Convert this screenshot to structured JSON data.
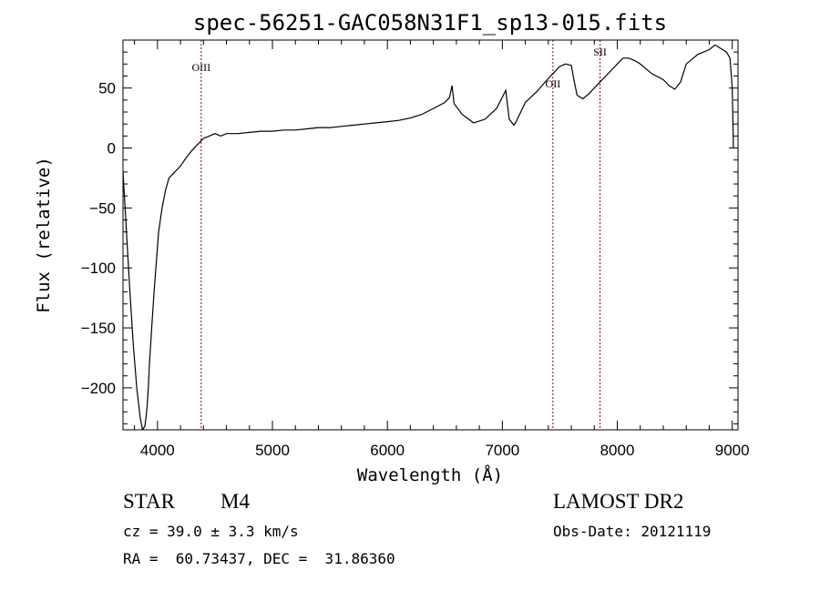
{
  "chart_data": {
    "type": "line",
    "title": "spec-56251-GAC058N31F1_sp13-015.fits",
    "xlabel": "Wavelength (Å)",
    "ylabel": "Flux (relative)",
    "xlim": [
      3700,
      9050
    ],
    "ylim": [
      -235,
      90
    ],
    "xticks": [
      4000,
      5000,
      6000,
      7000,
      8000,
      9000
    ],
    "yticks": [
      -200,
      -150,
      -100,
      -50,
      0,
      50
    ],
    "grid": false,
    "series": [
      {
        "x": [
          3700,
          3730,
          3760,
          3790,
          3820,
          3850,
          3870,
          3890,
          3900,
          3910,
          3920,
          3930,
          3950,
          3970,
          3990,
          4010,
          4040,
          4070,
          4100,
          4150,
          4200,
          4250,
          4300,
          4350,
          4400,
          4450,
          4500,
          4550,
          4600,
          4700,
          4800,
          4900,
          5000,
          5100,
          5200,
          5300,
          5400,
          5500,
          5600,
          5700,
          5800,
          5900,
          6000,
          6100,
          6200,
          6300,
          6400,
          6500,
          6540,
          6562,
          6580,
          6650,
          6750,
          6850,
          6950,
          7030,
          7060,
          7100,
          7120,
          7150,
          7200,
          7300,
          7400,
          7450,
          7500,
          7550,
          7600,
          7620,
          7650,
          7700,
          7750,
          7800,
          7850,
          7900,
          8000,
          8050,
          8100,
          8150,
          8200,
          8300,
          8400,
          8450,
          8500,
          8550,
          8600,
          8700,
          8800,
          8850,
          8900,
          8950,
          8980,
          9000,
          9010
        ],
        "y": [
          -20,
          -70,
          -120,
          -165,
          -200,
          -225,
          -235,
          -232,
          -225,
          -215,
          -200,
          -180,
          -150,
          -120,
          -95,
          -70,
          -50,
          -35,
          -25,
          -20,
          -15,
          -8,
          -2,
          3,
          8,
          10,
          12,
          10,
          12,
          12,
          13,
          14,
          14,
          15,
          15,
          16,
          17,
          17,
          18,
          19,
          20,
          21,
          22,
          23,
          25,
          28,
          33,
          38,
          42,
          52,
          37,
          28,
          21,
          24,
          33,
          48,
          24,
          19,
          22,
          28,
          38,
          47,
          58,
          63,
          68,
          70,
          69,
          58,
          44,
          41,
          45,
          50,
          55,
          60,
          70,
          75,
          75,
          73,
          70,
          62,
          57,
          52,
          49,
          55,
          70,
          78,
          82,
          86,
          83,
          80,
          75,
          50,
          0
        ]
      }
    ],
    "lines": [
      {
        "label": "OIII",
        "x": 4380
      },
      {
        "label": "OII",
        "x": 7440
      },
      {
        "label": "SII",
        "x": 7850
      }
    ]
  },
  "info": {
    "class": "STAR",
    "subclass": "M4",
    "cz": "cz = 39.0 ± 3.3 km/s",
    "coords": "RA =  60.73437, DEC =  31.86360",
    "survey": "LAMOST DR2",
    "obs_date": "Obs-Date: 20121119"
  },
  "colors": {
    "line": "#000000",
    "marker_line": "#8b0000"
  }
}
